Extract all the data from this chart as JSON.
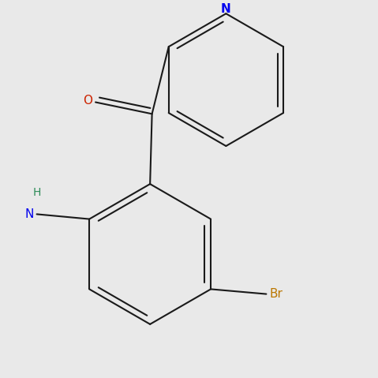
{
  "background_color": "#e9e9e9",
  "bond_color": "#1a1a1a",
  "bond_width": 1.5,
  "atom_colors": {
    "N": "#0000ee",
    "O": "#cc2200",
    "Br": "#bb7700",
    "H": "#2d8b57"
  },
  "font_size_atom": 11,
  "font_size_h": 10
}
